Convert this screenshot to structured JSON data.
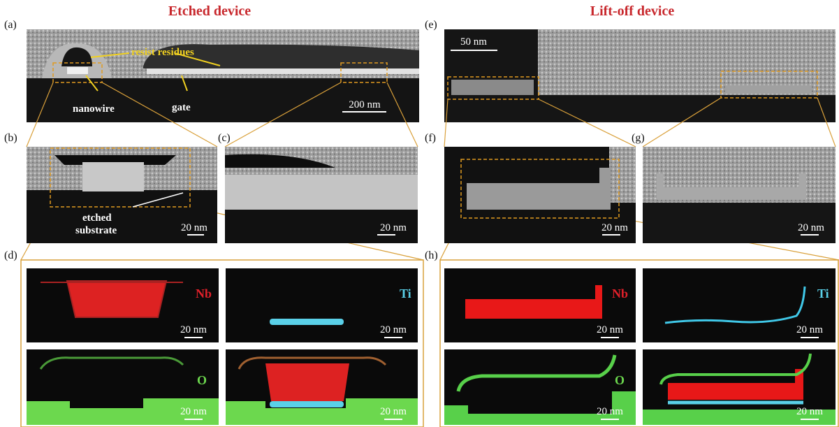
{
  "header": {
    "etched_title": "Etched device",
    "liftoff_title": "Lift-off device"
  },
  "panels": {
    "a": {
      "label": "(a)",
      "annotations": [
        "resist residues",
        "nanowire",
        "gate"
      ],
      "scale_bar": "200 nm"
    },
    "b": {
      "label": "(b)",
      "annotation_lines": [
        "etched",
        "substrate"
      ],
      "scale_bar": "20 nm"
    },
    "c": {
      "label": "(c)",
      "scale_bar": "20 nm"
    },
    "d": {
      "label": "(d)",
      "maps": [
        {
          "element": "Nb",
          "scale_bar": "20 nm"
        },
        {
          "element": "Ti",
          "scale_bar": "20 nm"
        },
        {
          "element": "O",
          "scale_bar": "20 nm"
        },
        {
          "scale_bar": "20 nm"
        }
      ]
    },
    "e": {
      "label": "(e)",
      "scale_bar": "50 nm"
    },
    "f": {
      "label": "(f)",
      "scale_bar": "20 nm"
    },
    "g": {
      "label": "(g)",
      "scale_bar": "20 nm"
    },
    "h": {
      "label": "(h)",
      "maps": [
        {
          "element": "Nb",
          "scale_bar": "20 nm"
        },
        {
          "element": "Ti",
          "scale_bar": "20 nm"
        },
        {
          "element": "O",
          "scale_bar": "20 nm"
        },
        {
          "scale_bar": "20 nm"
        }
      ]
    }
  }
}
